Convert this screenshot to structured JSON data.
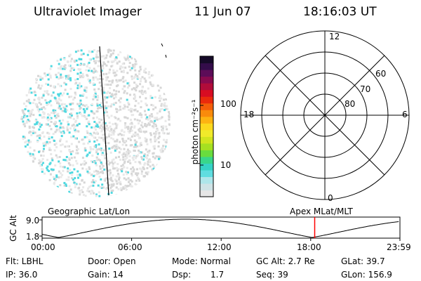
{
  "header": {
    "title": "Ultraviolet Imager",
    "date": "11 Jun 07",
    "time": "18:16:03 UT"
  },
  "colorbar": {
    "unit_label": "photon cm⁻²s⁻¹",
    "ticks": [
      {
        "label": "10",
        "value": 10
      },
      {
        "label": "100",
        "value": 100
      }
    ],
    "colors": [
      "#e6e6e6",
      "#cfe3e6",
      "#aee6ea",
      "#5fdde0",
      "#36d2c5",
      "#39d68a",
      "#69dc3e",
      "#a6e021",
      "#d2e51f",
      "#f1ea2a",
      "#fcd91e",
      "#fdb312",
      "#f98b0c",
      "#f45e0a",
      "#ea2a0c",
      "#d80c22",
      "#b10c3a",
      "#880a4e",
      "#5c0c58",
      "#330c4a",
      "#150a28"
    ]
  },
  "polar_grid": {
    "mlt_labels": {
      "top": "12",
      "left": "18",
      "right": "6",
      "bottom": "0"
    },
    "lat_labels": [
      "60",
      "70",
      "80"
    ]
  },
  "panels": {
    "left_label": "Geographic Lat/Lon",
    "right_label": "Apex MLat/MLT"
  },
  "altitude_plot": {
    "ylabel": "GC Alt",
    "yticks": [
      "9.0",
      "1.8"
    ],
    "xticks": [
      "00:00",
      "06:00",
      "12:00",
      "18:00",
      "23:59"
    ],
    "marker_time_hours": 18.27
  },
  "info": {
    "row1": {
      "flt_label": "Flt: LBHL",
      "door_label": "Door: Open",
      "mode_label": "Mode: Normal",
      "gcalt_label": "GC Alt: 2.7 Re",
      "glat_label": "GLat: 39.7"
    },
    "row2": {
      "ip_label": "IP: 36.0",
      "gain_label": "Gain: 14",
      "dsp_label": "Dsp:",
      "dsp_value": "1.7",
      "seq_label": "Seq: 39",
      "glon_label": "GLon: 156.9"
    }
  },
  "colors": {
    "marker_red": "#ff0000",
    "speckle_cyan": "#4fd8e0",
    "disk_gray": "#d9d9d9"
  }
}
